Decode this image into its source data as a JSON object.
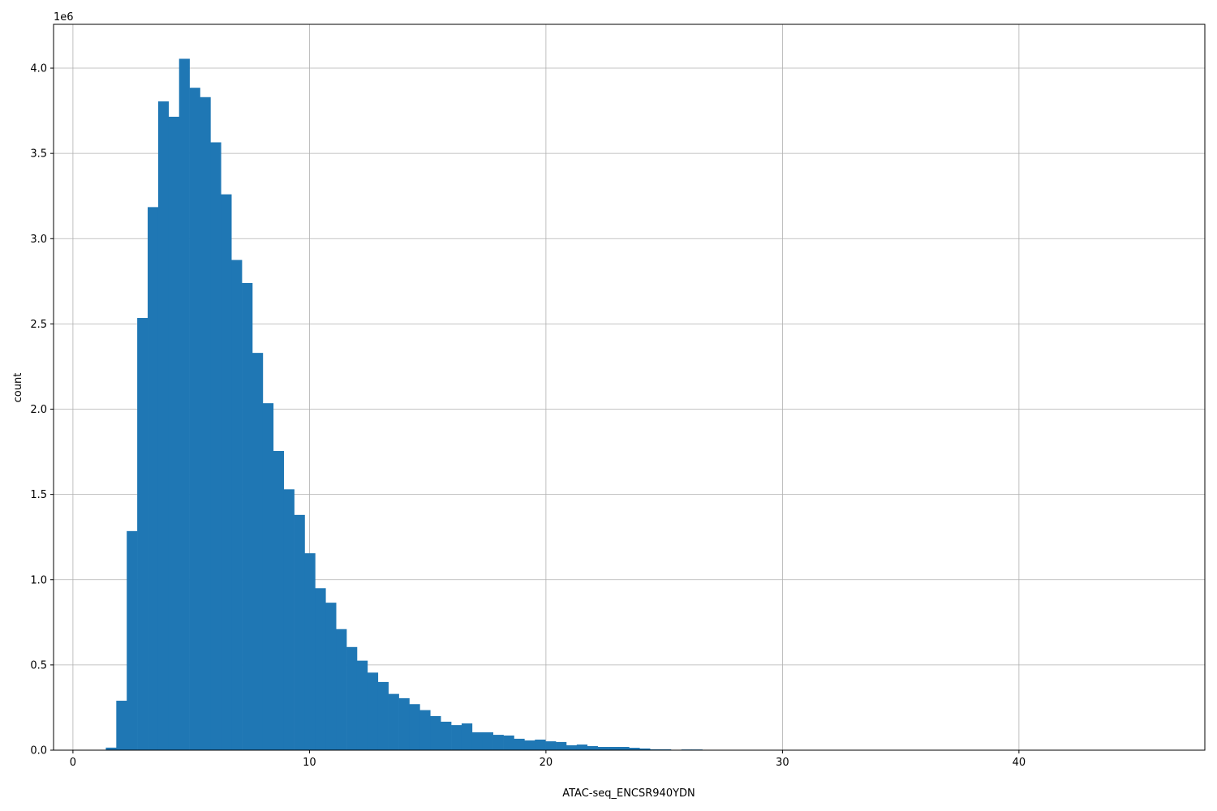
{
  "chart_data": {
    "type": "bar",
    "subtype": "histogram",
    "title": "",
    "xlabel": "ATAC-seq_ENCSR940YDN",
    "ylabel": "count",
    "y_offset_label": "1e6",
    "xlim": [
      -0.82,
      47.86
    ],
    "ylim": [
      0,
      4257000
    ],
    "grid": true,
    "bar_color": "#1f77b4",
    "bin_start": 1.39,
    "bin_width": 0.4425,
    "counts": [
      15000,
      290000,
      1285000,
      2535000,
      3185000,
      3805000,
      3715000,
      4055000,
      3885000,
      3830000,
      3565000,
      3260000,
      2875000,
      2740000,
      2330000,
      2035000,
      1755000,
      1530000,
      1380000,
      1155000,
      950000,
      865000,
      710000,
      605000,
      525000,
      455000,
      400000,
      330000,
      305000,
      270000,
      235000,
      200000,
      167000,
      147000,
      157000,
      105000,
      105000,
      90000,
      86000,
      67000,
      57000,
      62000,
      52000,
      48000,
      29000,
      33000,
      24000,
      19000,
      19000,
      19000,
      14000,
      10000,
      5000,
      5000,
      2000,
      4000,
      4000,
      0,
      0,
      0,
      0,
      0,
      0,
      0,
      0,
      0,
      0,
      0,
      0,
      0,
      0,
      0,
      0,
      0,
      0,
      0,
      0,
      0,
      0,
      0,
      0,
      0,
      0,
      0,
      0,
      0,
      0,
      0,
      0,
      0,
      0,
      0,
      0,
      0,
      0,
      0,
      0,
      0,
      0,
      0
    ],
    "x_ticks": [
      0,
      10,
      20,
      30,
      40
    ],
    "x_tick_labels": [
      "0",
      "10",
      "20",
      "30",
      "40"
    ],
    "y_ticks": [
      0,
      500000,
      1000000,
      1500000,
      2000000,
      2500000,
      3000000,
      3500000,
      4000000
    ],
    "y_tick_labels": [
      "0.0",
      "0.5",
      "1.0",
      "1.5",
      "2.0",
      "2.5",
      "3.0",
      "3.5",
      "4.0"
    ]
  }
}
